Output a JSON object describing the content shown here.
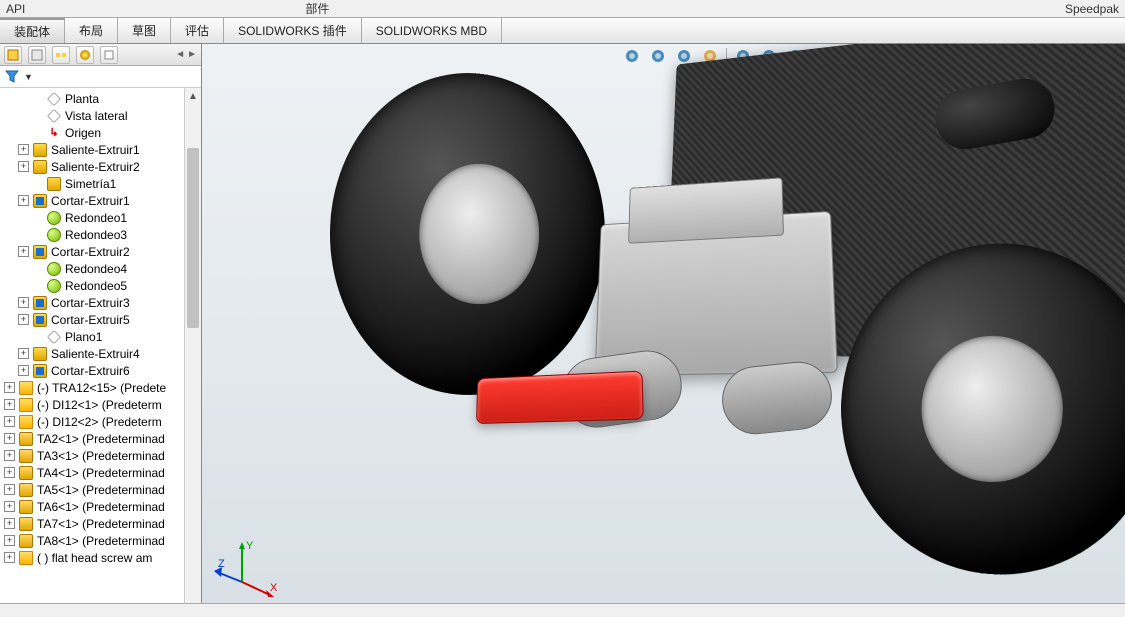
{
  "menu_fragment": {
    "item1": "API",
    "item2": "部件",
    "item3": "Speedpak"
  },
  "tabs": [
    {
      "label": "装配体",
      "active": true
    },
    {
      "label": "布局",
      "active": false
    },
    {
      "label": "草图",
      "active": false
    },
    {
      "label": "评估",
      "active": false
    },
    {
      "label": "SOLIDWORKS 插件",
      "active": false
    },
    {
      "label": "SOLIDWORKS MBD",
      "active": false
    }
  ],
  "tree": {
    "filter_glyph": "▼",
    "items": [
      {
        "indent": 2,
        "exp": "",
        "icon": "plane",
        "label": "Planta"
      },
      {
        "indent": 2,
        "exp": "",
        "icon": "plane",
        "label": "Vista lateral"
      },
      {
        "indent": 2,
        "exp": "",
        "icon": "origin",
        "label": "Origen"
      },
      {
        "indent": 1,
        "exp": "+",
        "icon": "extrude",
        "label": "Saliente-Extruir1"
      },
      {
        "indent": 1,
        "exp": "+",
        "icon": "extrude",
        "label": "Saliente-Extruir2"
      },
      {
        "indent": 2,
        "exp": "",
        "icon": "mirror",
        "label": "Simetría1"
      },
      {
        "indent": 1,
        "exp": "+",
        "icon": "cut",
        "label": "Cortar-Extruir1"
      },
      {
        "indent": 2,
        "exp": "",
        "icon": "fillet",
        "label": "Redondeo1"
      },
      {
        "indent": 2,
        "exp": "",
        "icon": "fillet",
        "label": "Redondeo3"
      },
      {
        "indent": 1,
        "exp": "+",
        "icon": "cut",
        "label": "Cortar-Extruir2"
      },
      {
        "indent": 2,
        "exp": "",
        "icon": "fillet",
        "label": "Redondeo4"
      },
      {
        "indent": 2,
        "exp": "",
        "icon": "fillet",
        "label": "Redondeo5"
      },
      {
        "indent": 1,
        "exp": "+",
        "icon": "cut",
        "label": "Cortar-Extruir3"
      },
      {
        "indent": 1,
        "exp": "+",
        "icon": "cut",
        "label": "Cortar-Extruir5"
      },
      {
        "indent": 2,
        "exp": "",
        "icon": "plane",
        "label": "Plano1"
      },
      {
        "indent": 1,
        "exp": "+",
        "icon": "extrude",
        "label": "Saliente-Extruir4"
      },
      {
        "indent": 1,
        "exp": "+",
        "icon": "cut",
        "label": "Cortar-Extruir6"
      },
      {
        "indent": 0,
        "exp": "+",
        "icon": "part",
        "label": "(-) TRA12<15> (Predete"
      },
      {
        "indent": 0,
        "exp": "+",
        "icon": "part",
        "label": "(-) DI12<1> (Predeterm"
      },
      {
        "indent": 0,
        "exp": "+",
        "icon": "part",
        "label": "(-) DI12<2> (Predeterm"
      },
      {
        "indent": 0,
        "exp": "+",
        "icon": "assem",
        "label": "TA2<1> (Predeterminad"
      },
      {
        "indent": 0,
        "exp": "+",
        "icon": "assem",
        "label": "TA3<1> (Predeterminad"
      },
      {
        "indent": 0,
        "exp": "+",
        "icon": "assem",
        "label": "TA4<1> (Predeterminad"
      },
      {
        "indent": 0,
        "exp": "+",
        "icon": "assem",
        "label": "TA5<1> (Predeterminad"
      },
      {
        "indent": 0,
        "exp": "+",
        "icon": "assem",
        "label": "TA6<1> (Predeterminad"
      },
      {
        "indent": 0,
        "exp": "+",
        "icon": "assem",
        "label": "TA7<1> (Predeterminad"
      },
      {
        "indent": 0,
        "exp": "+",
        "icon": "assem",
        "label": "TA8<1> (Predeterminad"
      },
      {
        "indent": 0,
        "exp": "+",
        "icon": "part",
        "label": "( ) flat head screw am"
      }
    ]
  },
  "triad": {
    "x": "X",
    "y": "Y",
    "z": "Z",
    "x_color": "#d40000",
    "y_color": "#00a000",
    "z_color": "#0040d0"
  },
  "hud_icons": [
    "zoom-fit",
    "zoom-area",
    "prev-view",
    "section",
    "view-orient",
    "display-style",
    "hide-show",
    "edit-appearance",
    "apply-scene",
    "view-settings",
    "render",
    "render2",
    "render3"
  ],
  "bottom": {
    "a": "",
    "b": ""
  },
  "colors": {
    "viewport_top": "#eef2f5",
    "viewport_bottom": "#d9e0e5"
  }
}
